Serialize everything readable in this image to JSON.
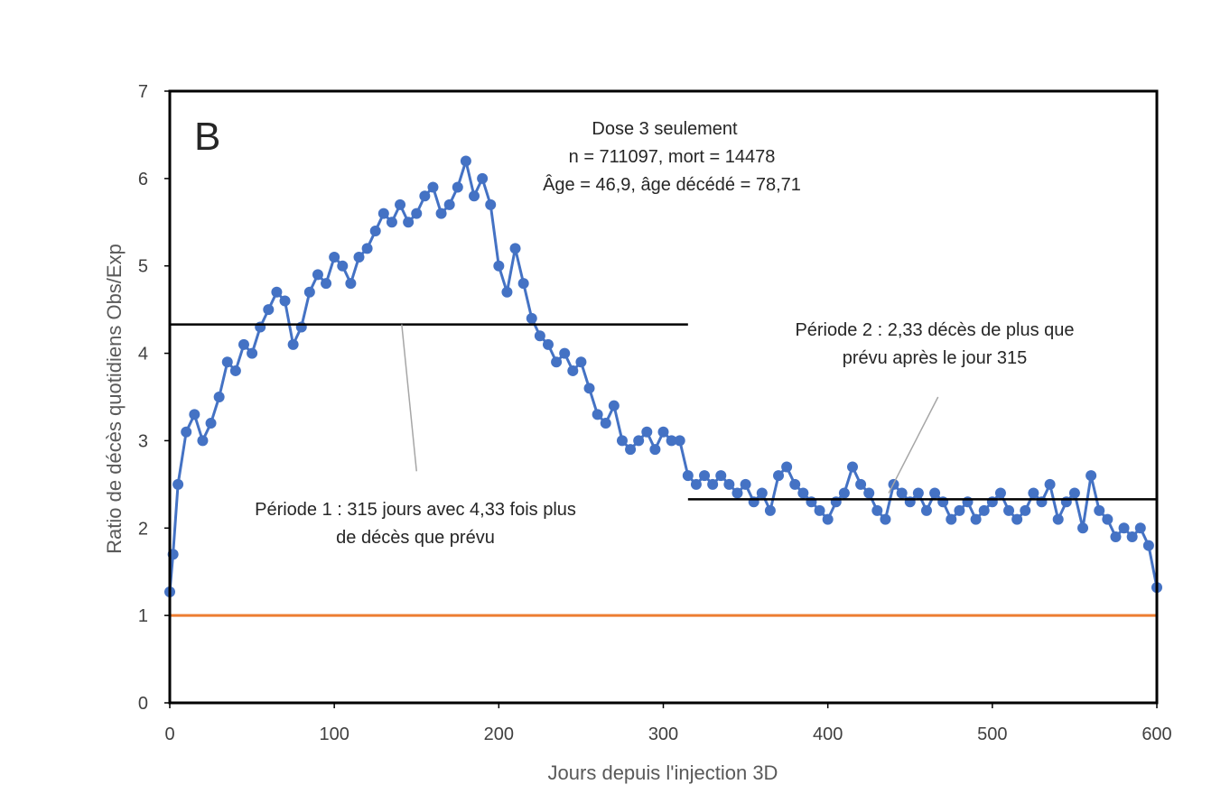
{
  "chart_data": {
    "type": "line",
    "panel_label": "B",
    "xlabel": "Jours depuis l'injection 3D",
    "ylabel": "Ratio de décès quotidiens Obs/Exp",
    "xlim": [
      0,
      600
    ],
    "ylim": [
      0,
      7
    ],
    "x_ticks": [
      0,
      100,
      200,
      300,
      400,
      500,
      600
    ],
    "y_ticks": [
      0,
      1,
      2,
      3,
      4,
      5,
      6,
      7
    ],
    "x_tick_labels": [
      "0",
      "100",
      "200",
      "300",
      "400",
      "500",
      "600"
    ],
    "y_tick_labels": [
      "0",
      "1",
      "2",
      "3",
      "4",
      "5",
      "6",
      "7"
    ],
    "grid": false,
    "legend": null,
    "colors": {
      "series": "#4472C4",
      "reference": "#ED7D31",
      "period_lines": "#000000",
      "leader_lines": "#A6A6A6"
    },
    "info_box": {
      "line1": "Dose 3 seulement",
      "line2": "n = 711097, mort = 14478",
      "line3": "Âge = 46,9, âge décédé = 78,71"
    },
    "annotations": {
      "period1_line1": "Période 1 : 315 jours avec 4,33 fois plus",
      "period1_line2": "de décès que prévu",
      "period2_line1": "Période 2 : 2,33 décès de plus que",
      "period2_line2": "prévu après le jour 315"
    },
    "reference_line": {
      "y": 1,
      "x_start": 0,
      "x_end": 600
    },
    "period_lines": [
      {
        "name": "period-1-mean",
        "y": 4.33,
        "x_start": 0,
        "x_end": 315
      },
      {
        "name": "period-2-mean",
        "y": 2.33,
        "x_start": 315,
        "x_end": 600
      }
    ],
    "series": [
      {
        "name": "Ratio Obs/Exp (Dose 3)",
        "x": [
          0,
          2,
          5,
          10,
          15,
          20,
          25,
          30,
          35,
          40,
          45,
          50,
          55,
          60,
          65,
          70,
          75,
          80,
          85,
          90,
          95,
          100,
          105,
          110,
          115,
          120,
          125,
          130,
          135,
          140,
          145,
          150,
          155,
          160,
          165,
          170,
          175,
          180,
          185,
          190,
          195,
          200,
          205,
          210,
          215,
          220,
          225,
          230,
          235,
          240,
          245,
          250,
          255,
          260,
          265,
          270,
          275,
          280,
          285,
          290,
          295,
          300,
          305,
          310,
          315,
          320,
          325,
          330,
          335,
          340,
          345,
          350,
          355,
          360,
          365,
          370,
          375,
          380,
          385,
          390,
          395,
          400,
          405,
          410,
          415,
          420,
          425,
          430,
          435,
          440,
          445,
          450,
          455,
          460,
          465,
          470,
          475,
          480,
          485,
          490,
          495,
          500,
          505,
          510,
          515,
          520,
          525,
          530,
          535,
          540,
          545,
          550,
          555,
          560,
          565,
          570,
          575,
          580,
          585,
          590,
          595,
          600
        ],
        "values": [
          1.27,
          1.7,
          2.5,
          3.1,
          3.3,
          3.0,
          3.2,
          3.5,
          3.9,
          3.8,
          4.1,
          4.0,
          4.3,
          4.5,
          4.7,
          4.6,
          4.1,
          4.3,
          4.7,
          4.9,
          4.8,
          5.1,
          5.0,
          4.8,
          5.1,
          5.2,
          5.4,
          5.6,
          5.5,
          5.7,
          5.5,
          5.6,
          5.8,
          5.9,
          5.6,
          5.7,
          5.9,
          6.2,
          5.8,
          6.0,
          5.7,
          5.0,
          4.7,
          5.2,
          4.8,
          4.4,
          4.2,
          4.1,
          3.9,
          4.0,
          3.8,
          3.9,
          3.6,
          3.3,
          3.2,
          3.4,
          3.0,
          2.9,
          3.0,
          3.1,
          2.9,
          3.1,
          3.0,
          3.0,
          2.6,
          2.5,
          2.6,
          2.5,
          2.6,
          2.5,
          2.4,
          2.5,
          2.3,
          2.4,
          2.2,
          2.6,
          2.7,
          2.5,
          2.4,
          2.3,
          2.2,
          2.1,
          2.3,
          2.4,
          2.7,
          2.5,
          2.4,
          2.2,
          2.1,
          2.5,
          2.4,
          2.3,
          2.4,
          2.2,
          2.4,
          2.3,
          2.1,
          2.2,
          2.3,
          2.1,
          2.2,
          2.3,
          2.4,
          2.2,
          2.1,
          2.2,
          2.4,
          2.3,
          2.5,
          2.1,
          2.3,
          2.4,
          2.0,
          2.6,
          2.2,
          2.1,
          1.9,
          2.0,
          1.9,
          2.0,
          1.8,
          1.32
        ]
      }
    ]
  }
}
